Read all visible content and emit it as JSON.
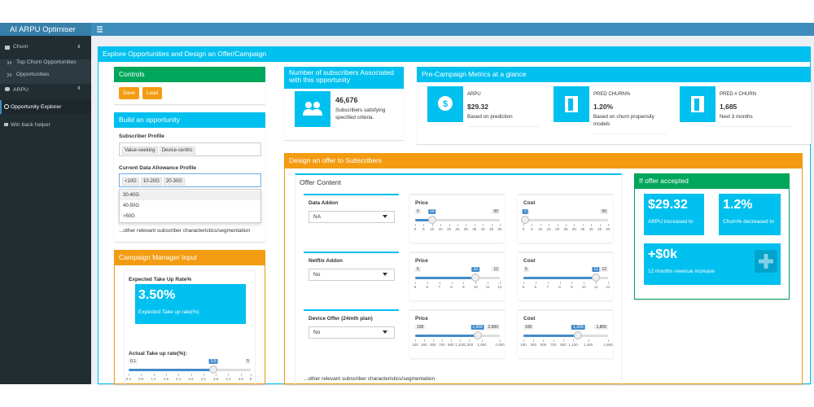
{
  "header": {
    "brand": "AI ARPU Optimiser"
  },
  "sidebar": [
    "Churn",
    "Top Churn Opportunities",
    "Opportunities",
    "ARPU",
    "Opportunity Explorer",
    "Win back helper"
  ],
  "page_title": "Explore Opportunities and Design an Offer/Campaign",
  "controls": {
    "title": "Controls",
    "buttons": [
      "Save",
      "Load"
    ]
  },
  "build": {
    "title": "Build an opportunity",
    "subscriber_profile": {
      "label": "Subscriber Profile",
      "tags": [
        "Value-seeking",
        "Device-centric"
      ]
    },
    "data_allowance": {
      "label": "Current Data Allowance Profile",
      "tags": [
        "<10G",
        "10-20G",
        "20-30G"
      ],
      "options": [
        "30-40G",
        "40-50G",
        ">50G"
      ]
    },
    "note": "...other relevant subscriber characteristics/segmentation"
  },
  "campaign": {
    "title": "Campaign Manager Input",
    "expected": {
      "label": "Expected Take Up Rate%",
      "value": "3.50%",
      "caption": "Expected Take up rate(%)"
    },
    "actual": {
      "label": "Actual Take up rate(%):",
      "slider": {
        "min": 0.1,
        "max": 5,
        "value": 3.5,
        "ticks": [
          0.1,
          0.6,
          1.1,
          1.6,
          2.1,
          2.6,
          3.1,
          3.6,
          4.1,
          4.6,
          5
        ]
      }
    }
  },
  "subscribers": {
    "title": "Number of subscribers Associated with this opportunity",
    "value": "46,676",
    "caption": "Subscribers satisfying specified criteria."
  },
  "metrics": {
    "title": "Pre-Campaign Metrics at a glance",
    "items": [
      {
        "label": "ARPU",
        "value": "$29.32",
        "caption": "Based on prediction"
      },
      {
        "label": "PRED CHURN%",
        "value": "1.20%",
        "caption": "Based on churn propensity models"
      },
      {
        "label": "PRED # CHURN",
        "value": "1,685",
        "caption": "Next 3 months"
      }
    ]
  },
  "offer": {
    "title": "Design an offer to Subscribers",
    "content_title": "Offer Content",
    "rows": [
      {
        "label": "Data Addon",
        "select": "NA",
        "price": {
          "label": "Price",
          "min": 0,
          "max": 50,
          "value": 10,
          "ticks": [
            0,
            5,
            10,
            15,
            20,
            25,
            30,
            35,
            40,
            45,
            50
          ]
        },
        "cost": {
          "label": "Cost",
          "min": 0,
          "max": 50,
          "value": 1,
          "ticks": [
            0,
            5,
            10,
            15,
            20,
            25,
            30,
            35,
            40,
            45,
            50
          ]
        }
      },
      {
        "label": "Netflix Addon",
        "select": "No",
        "price": {
          "label": "Price",
          "min": 5,
          "max": 12,
          "value": 10,
          "ticks": [
            5,
            6,
            7,
            8,
            9,
            10,
            11,
            12
          ]
        },
        "cost": {
          "label": "Cost",
          "min": 5,
          "max": 12,
          "value": 11,
          "ticks": [
            5,
            6,
            7,
            8,
            9,
            10,
            11,
            12
          ]
        }
      },
      {
        "label": "Device Offer (24mth plan)",
        "select": "No",
        "price": {
          "label": "Price",
          "min": 100,
          "max": {
            "value": 2000,
            "label": "2,000"
          },
          "value": {
            "value": 1500,
            "label": "1,500"
          },
          "ticks": [
            100,
            300,
            500,
            700,
            900,
            {
              "value": 1100,
              "label": "1,100"
            },
            {
              "value": 1300,
              "label": "1,300"
            },
            {
              "value": 1600,
              "label": "1,600"
            },
            {
              "value": 2000,
              "label": "2,000"
            }
          ]
        },
        "cost": {
          "label": "Cost",
          "min": 100,
          "max": {
            "value": 1800,
            "label": "1,800"
          },
          "value": {
            "value": 1200,
            "label": "1,200"
          },
          "ticks": [
            100,
            300,
            500,
            700,
            900,
            {
              "value": 1100,
              "label": "1,100"
            },
            {
              "value": 1400,
              "label": "1,400"
            },
            {
              "value": 1800,
              "label": "1,800"
            }
          ]
        }
      }
    ],
    "note": "...other relevant subscriber characteristics/segmentation"
  },
  "accepted": {
    "title": "If offer accepted",
    "items": [
      {
        "value": "$29.32",
        "caption": "ARPU increased to"
      },
      {
        "value": "1.2%",
        "caption": "Churn% decreased to"
      },
      {
        "value": "+$0k",
        "caption": "12 months revenue increase"
      }
    ]
  }
}
